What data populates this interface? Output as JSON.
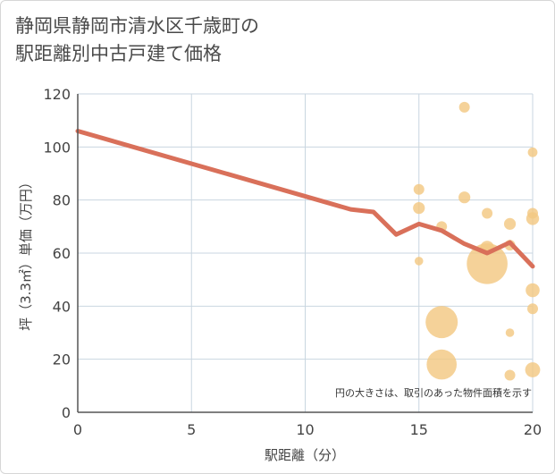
{
  "chart_data": {
    "type": "scatter",
    "title_lines": [
      "静岡県静岡市清水区千歳町の",
      "駅距離別中古戸建て価格"
    ],
    "xlabel": "駅距離（分）",
    "ylabel": "坪（3.3㎡）単価（万円）",
    "xlim": [
      0,
      20
    ],
    "ylim": [
      0,
      120
    ],
    "x_ticks": [
      0,
      5,
      10,
      15,
      20
    ],
    "y_ticks": [
      0,
      20,
      40,
      60,
      80,
      100,
      120
    ],
    "grid": true,
    "note": "円の大きさは、取引のあった物件面積を示す",
    "points": [
      {
        "x": 15,
        "y": 84,
        "size": 1.0
      },
      {
        "x": 15,
        "y": 77,
        "size": 1.1
      },
      {
        "x": 15,
        "y": 57,
        "size": 0.8
      },
      {
        "x": 16,
        "y": 70,
        "size": 1.0
      },
      {
        "x": 16,
        "y": 34,
        "size": 3.0
      },
      {
        "x": 16,
        "y": 18,
        "size": 2.8
      },
      {
        "x": 17,
        "y": 115,
        "size": 1.0
      },
      {
        "x": 17,
        "y": 81,
        "size": 1.1
      },
      {
        "x": 18,
        "y": 75,
        "size": 1.0
      },
      {
        "x": 18,
        "y": 62,
        "size": 1.3
      },
      {
        "x": 18,
        "y": 56,
        "size": 3.8
      },
      {
        "x": 19,
        "y": 71,
        "size": 1.1
      },
      {
        "x": 19,
        "y": 63,
        "size": 1.0
      },
      {
        "x": 19,
        "y": 30,
        "size": 0.8
      },
      {
        "x": 19,
        "y": 14,
        "size": 1.0
      },
      {
        "x": 20,
        "y": 98,
        "size": 0.9
      },
      {
        "x": 20,
        "y": 75,
        "size": 1.0
      },
      {
        "x": 20,
        "y": 73,
        "size": 1.2
      },
      {
        "x": 20,
        "y": 46,
        "size": 1.3
      },
      {
        "x": 20,
        "y": 39,
        "size": 1.0
      },
      {
        "x": 20,
        "y": 16,
        "size": 1.4
      }
    ],
    "trend_line": {
      "x": [
        0,
        12,
        13,
        14,
        15,
        16,
        17,
        18,
        19,
        20
      ],
      "y": [
        106,
        76.5,
        75.5,
        67,
        71,
        68.5,
        63.5,
        60,
        64,
        55
      ]
    },
    "colors": {
      "points": "#f3c883",
      "line": "#d9705a",
      "grid": "#c9d6e0",
      "axis": "#555555"
    }
  }
}
